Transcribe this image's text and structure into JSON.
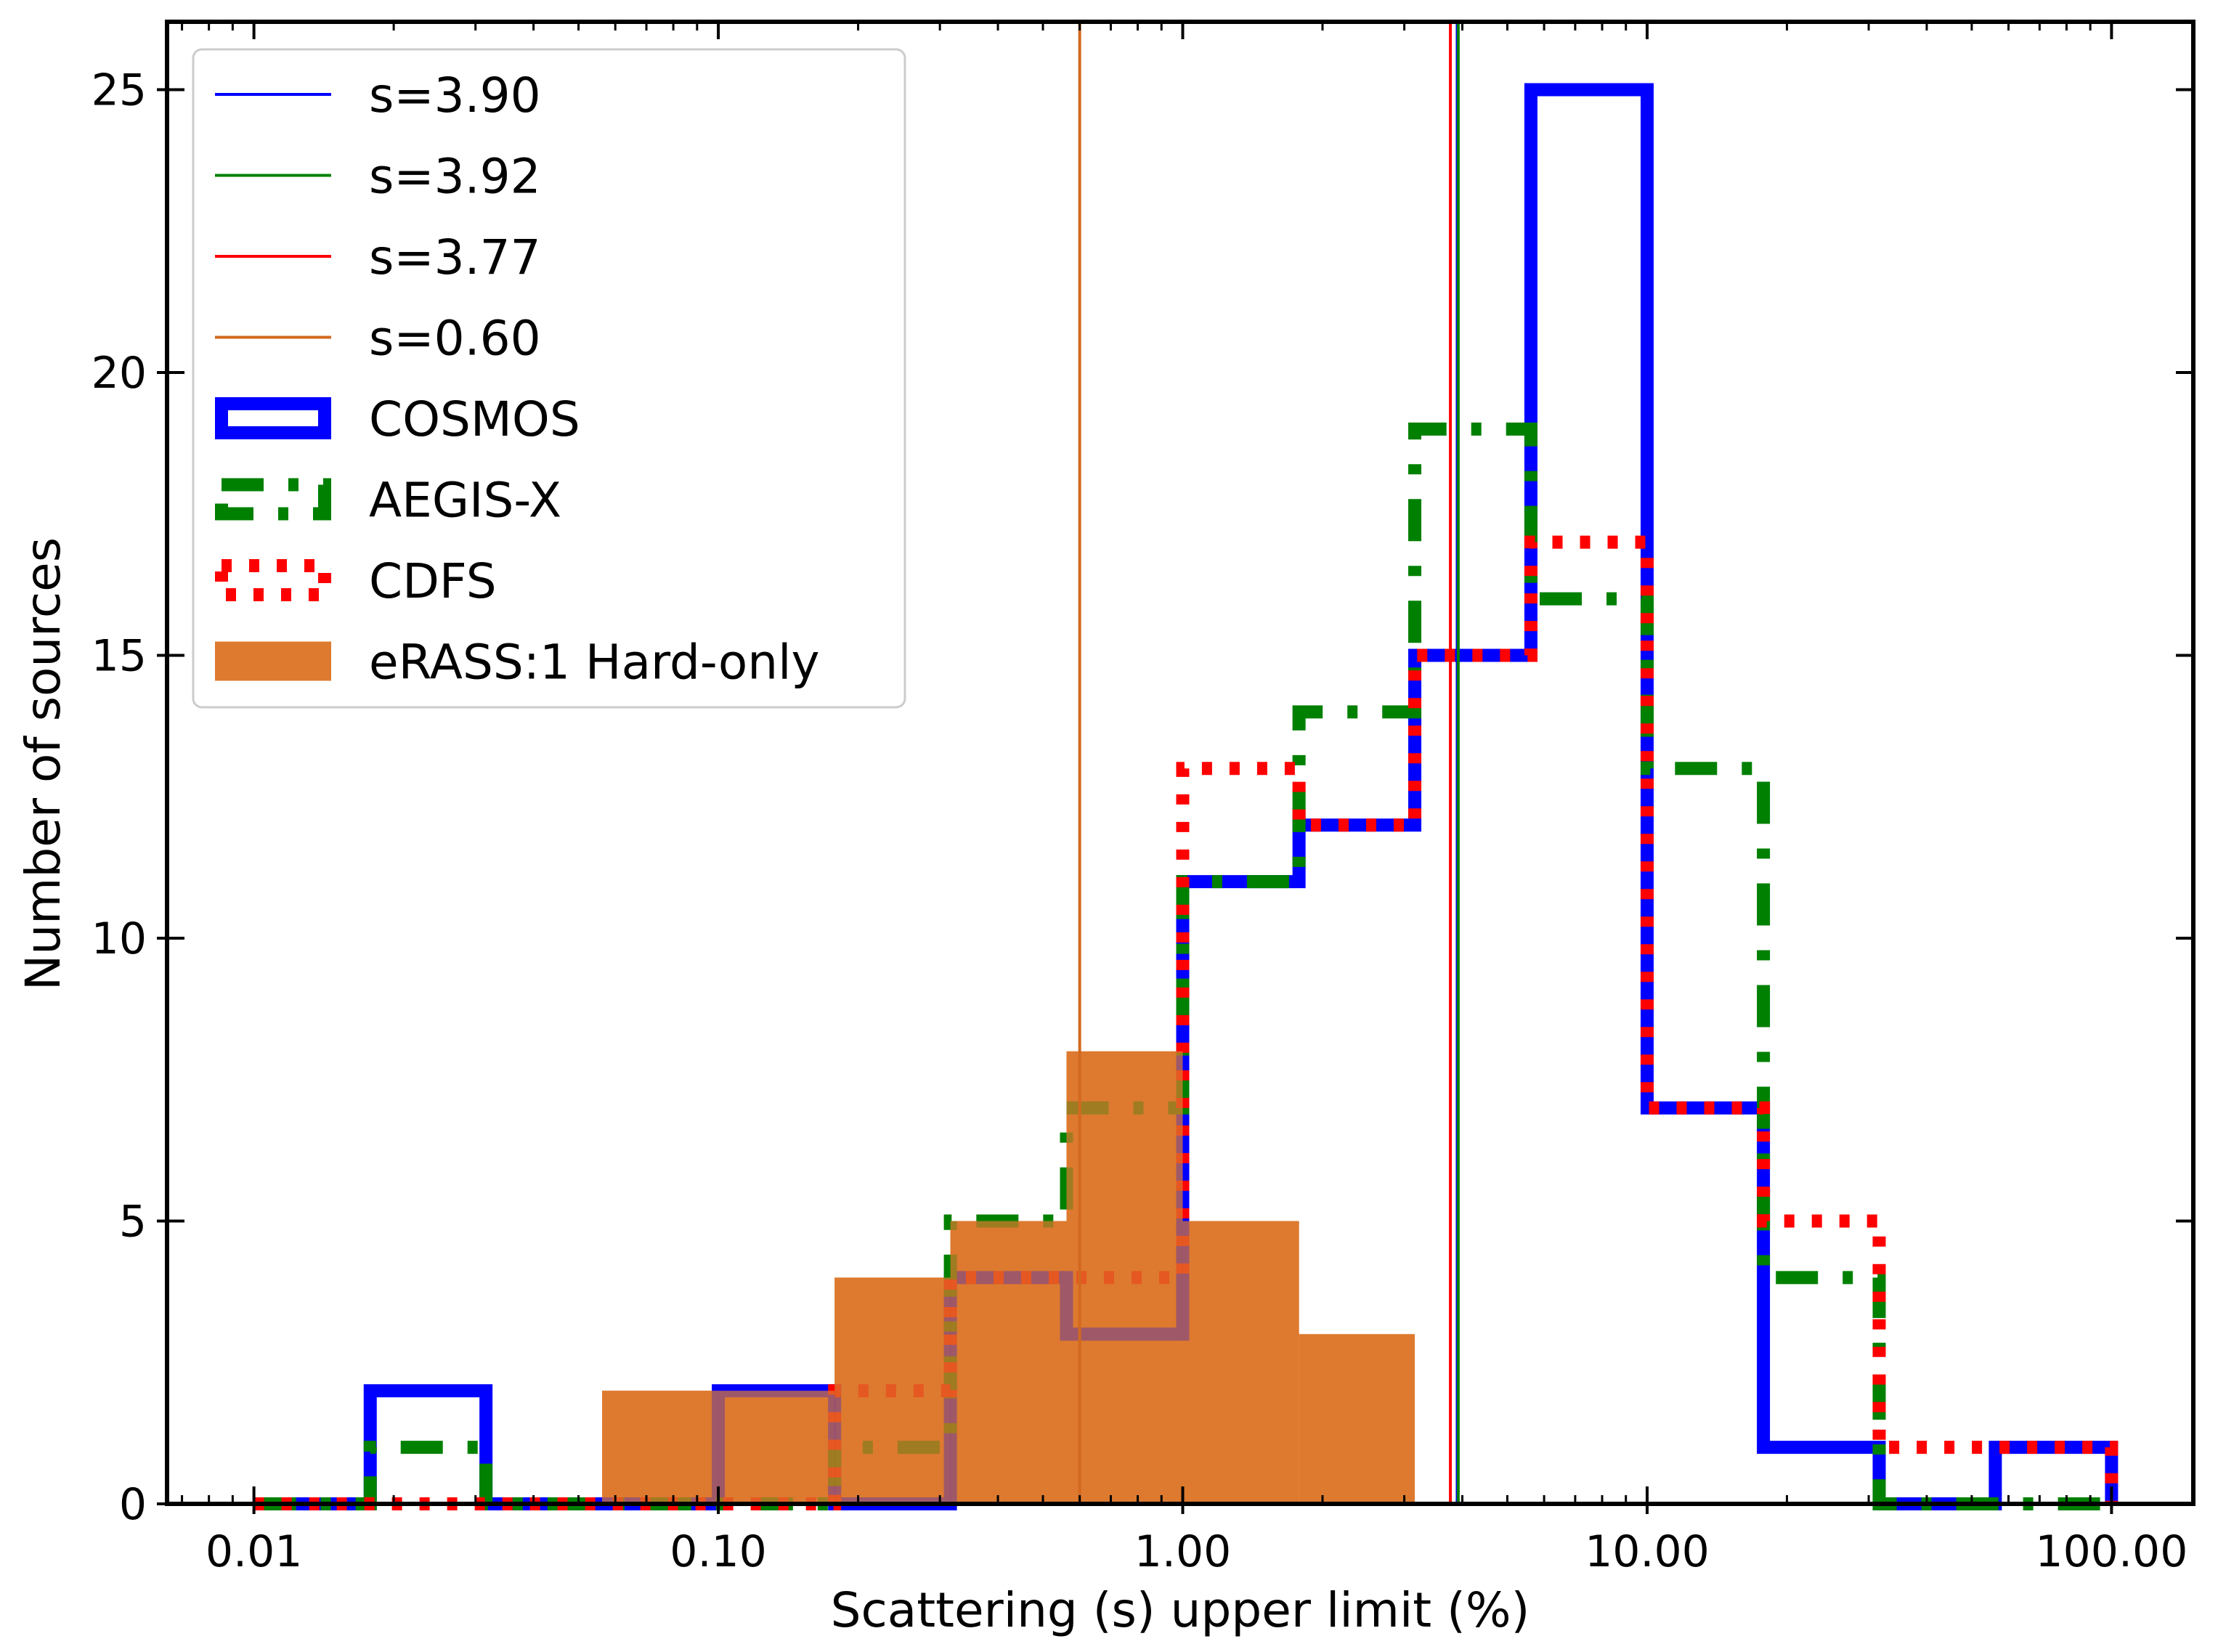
{
  "chart_data": {
    "type": "bar",
    "subtype": "step-histogram",
    "xscale": "log",
    "xlim": [
      0.0065,
      150
    ],
    "ylim": [
      0,
      26.2
    ],
    "xlabel": "Scattering (s) upper limit (%)",
    "ylabel": "Number of sources",
    "grid": false,
    "legend_position": "upper-left",
    "x_ticks": [
      {
        "value": 0.01,
        "label": "0.01"
      },
      {
        "value": 0.1,
        "label": "0.10"
      },
      {
        "value": 1,
        "label": "1.00"
      },
      {
        "value": 10,
        "label": "10.00"
      },
      {
        "value": 100,
        "label": "100.00"
      }
    ],
    "y_ticks": [
      {
        "value": 0,
        "label": "0"
      },
      {
        "value": 5,
        "label": "5"
      },
      {
        "value": 10,
        "label": "10"
      },
      {
        "value": 15,
        "label": "15"
      },
      {
        "value": 20,
        "label": "20"
      },
      {
        "value": 25,
        "label": "25"
      }
    ],
    "bin_edges": [
      0.01,
      0.0178,
      0.0316,
      0.0562,
      0.1,
      0.178,
      0.316,
      0.562,
      1.0,
      1.78,
      3.16,
      5.62,
      10.0,
      17.8,
      31.6,
      56.2,
      100.0
    ],
    "series": [
      {
        "name": "COSMOS",
        "style": "step",
        "color": "#0000ff",
        "dash": "solid",
        "values": [
          0,
          2,
          0,
          0,
          2,
          0,
          4,
          3,
          11,
          12,
          15,
          25,
          7,
          1,
          0,
          1
        ]
      },
      {
        "name": "AEGIS-X",
        "style": "step",
        "color": "#008000",
        "dash": "dashdot",
        "values": [
          0,
          1,
          0,
          0,
          0,
          1,
          5,
          7,
          11,
          14,
          19,
          16,
          13,
          4,
          0,
          0
        ]
      },
      {
        "name": "CDFS",
        "style": "step",
        "color": "#ff0000",
        "dash": "dotted",
        "values": [
          0,
          0,
          0,
          0,
          0,
          2,
          4,
          4,
          13,
          12,
          15,
          17,
          7,
          5,
          1,
          1
        ]
      },
      {
        "name": "eRASS:1 Hard-only",
        "style": "filled",
        "color": "#dd7a2f",
        "bin_edges": [
          0.0562,
          0.1,
          0.178,
          0.316,
          0.562,
          1.0,
          1.78,
          3.16
        ],
        "values": [
          2,
          2,
          4,
          5,
          8,
          5,
          3
        ]
      }
    ],
    "vlines": [
      {
        "label": "s=3.90",
        "x": 3.9,
        "color": "#0000ff"
      },
      {
        "label": "s=3.92",
        "x": 3.92,
        "color": "#008000"
      },
      {
        "label": "s=3.77",
        "x": 3.77,
        "color": "#ff0000"
      },
      {
        "label": "s=0.60",
        "x": 0.6,
        "color": "#d2691e"
      }
    ]
  }
}
